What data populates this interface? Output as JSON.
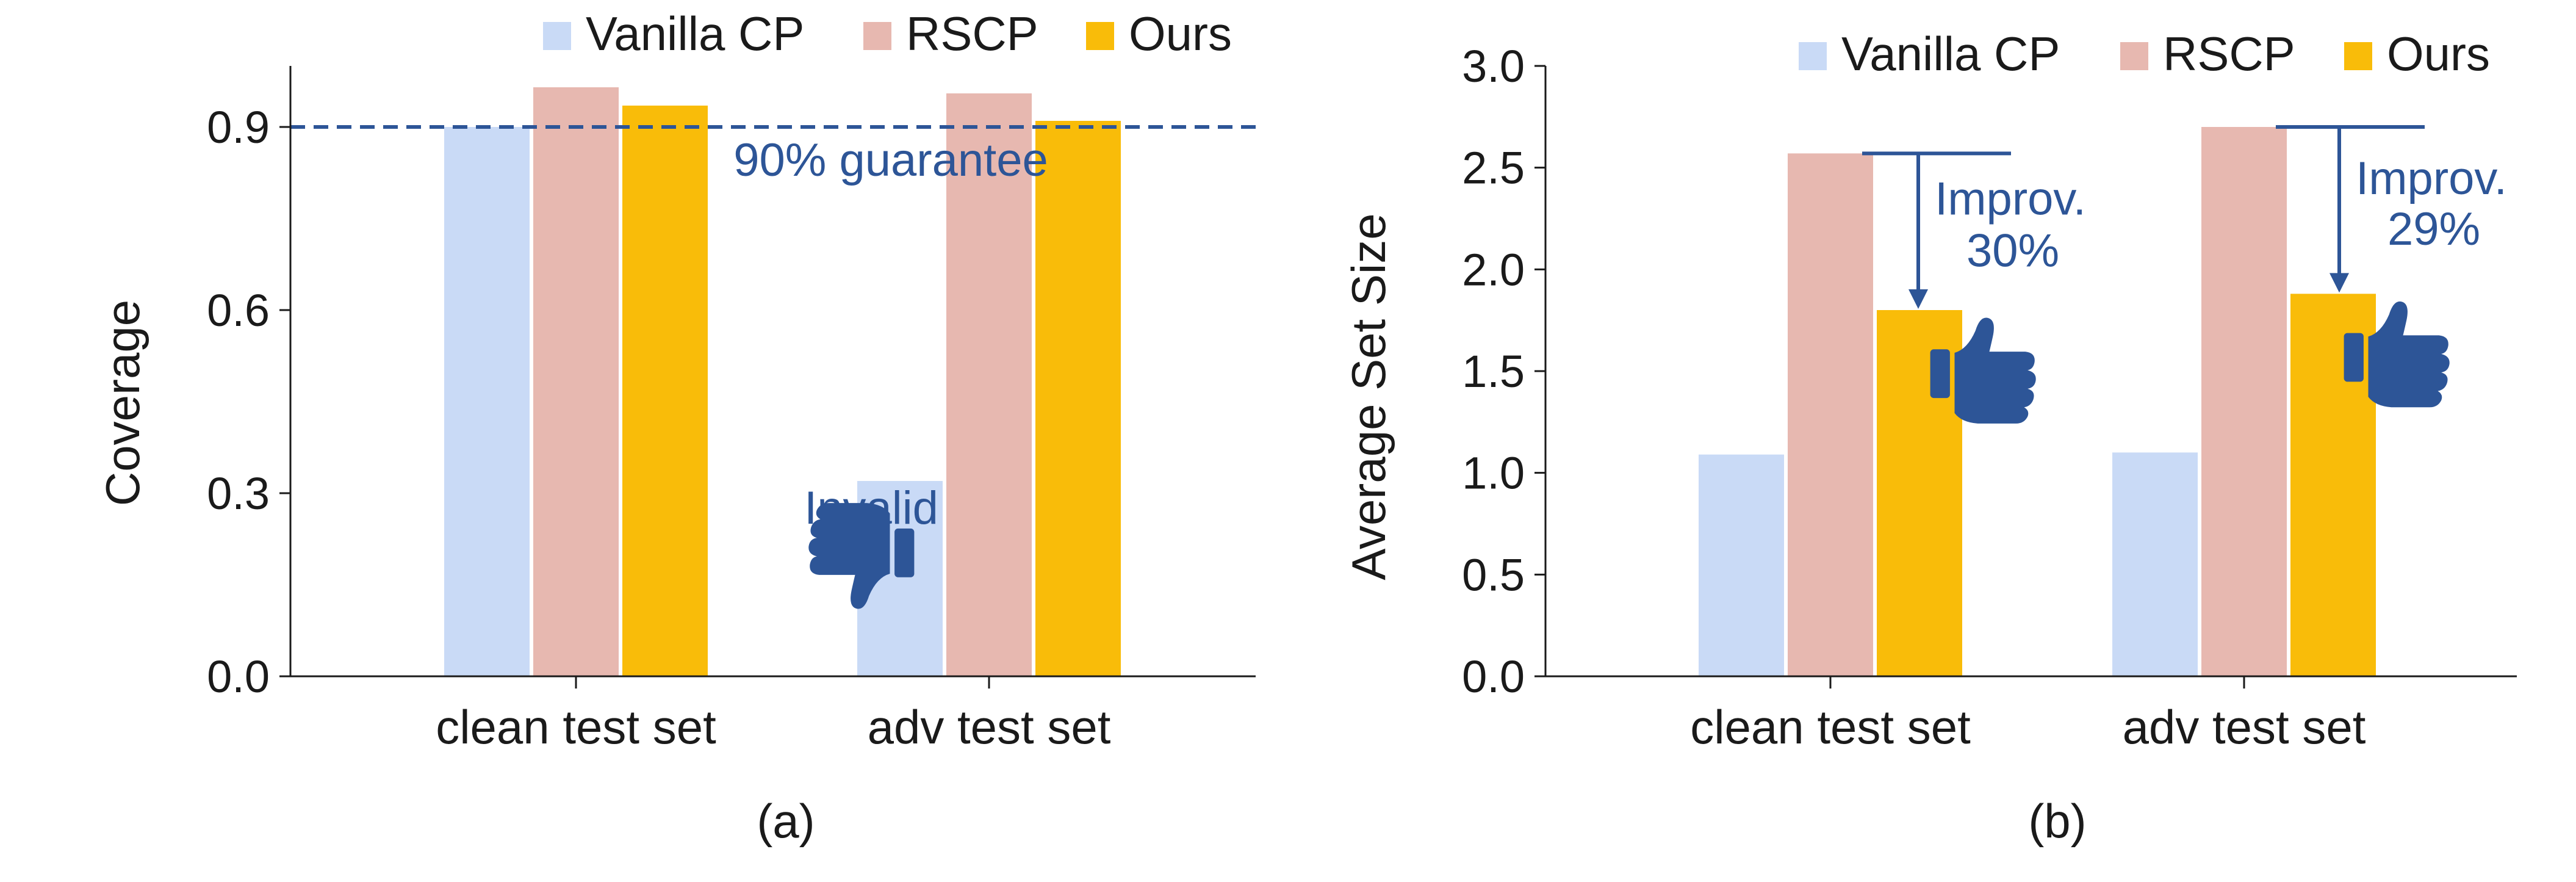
{
  "colors": {
    "vanilla": "#c9daf6",
    "rscp": "#e7b8b0",
    "ours": "#f9bc09",
    "accent": "#2d5597",
    "axis": "#1a1a1a"
  },
  "chart_data": [
    {
      "type": "bar",
      "panel_label": "(a)",
      "ylabel": "Coverage",
      "ylim": [
        0,
        1.0
      ],
      "yticks": [
        "0.0",
        "0.3",
        "0.6",
        "0.9"
      ],
      "categories": [
        "clean test set",
        "adv test set"
      ],
      "series": [
        {
          "name": "Vanilla CP",
          "values": [
            0.9,
            0.32
          ]
        },
        {
          "name": "RSCP",
          "values": [
            0.965,
            0.955
          ]
        },
        {
          "name": "Ours",
          "values": [
            0.935,
            0.91
          ]
        }
      ],
      "reference_line": {
        "value": 0.9,
        "label": "90% guarantee"
      },
      "annotations": [
        {
          "text": "Invalid",
          "icon": "thumbs-down-icon"
        }
      ],
      "legend": "top-right",
      "grid": false
    },
    {
      "type": "bar",
      "panel_label": "(b)",
      "ylabel": "Average Set Size",
      "ylim": [
        0,
        3.0
      ],
      "yticks": [
        "0.0",
        "0.5",
        "1.0",
        "1.5",
        "2.0",
        "2.5",
        "3.0"
      ],
      "categories": [
        "clean test set",
        "adv test set"
      ],
      "series": [
        {
          "name": "Vanilla CP",
          "values": [
            1.09,
            1.1
          ]
        },
        {
          "name": "RSCP",
          "values": [
            2.57,
            2.7
          ]
        },
        {
          "name": "Ours",
          "values": [
            1.8,
            1.88
          ]
        }
      ],
      "annotations": [
        {
          "line1": "Improv.",
          "line2": "30%",
          "icon": "thumbs-up-icon"
        },
        {
          "line1": "Improv.",
          "line2": "29%",
          "icon": "thumbs-up-icon"
        }
      ],
      "legend": "top-right",
      "grid": false
    }
  ]
}
